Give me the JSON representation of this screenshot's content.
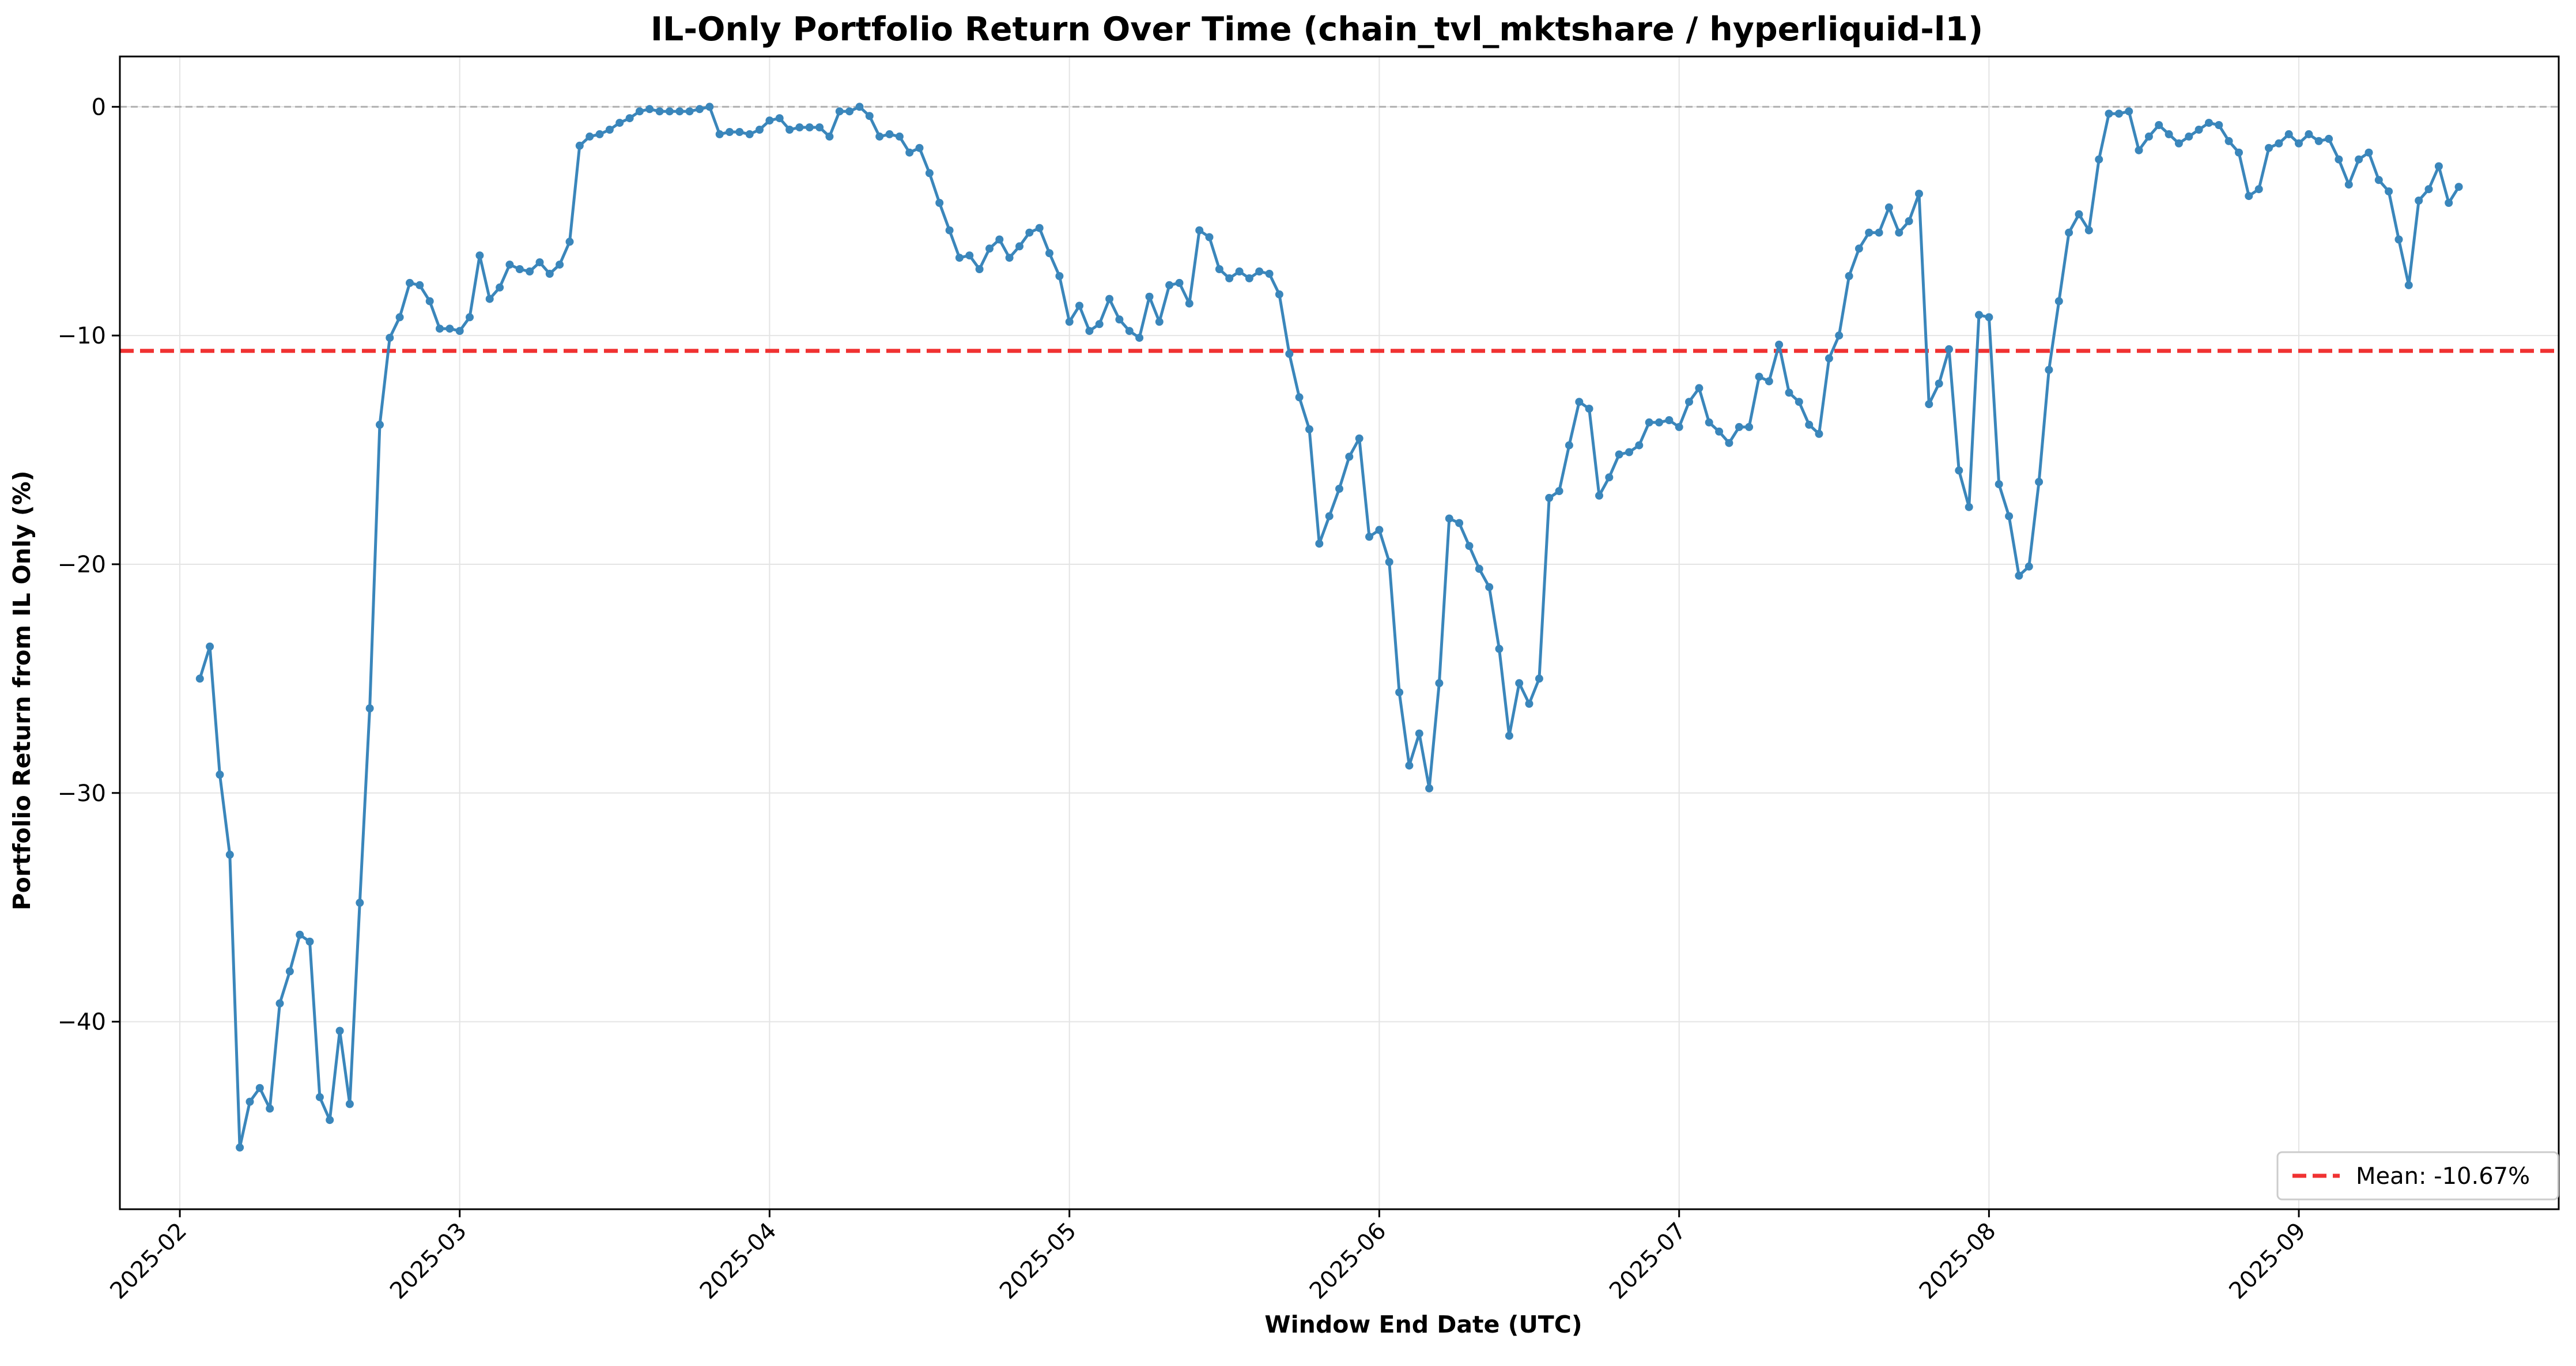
{
  "chart_data": {
    "type": "line",
    "title": "IL-Only Portfolio Return Over Time (chain_tvl_mktshare / hyperliquid-l1)",
    "xlabel": "Window End Date (UTC)",
    "ylabel": "Portfolio Return from IL Only (%)",
    "xlim": [
      "2025-01-26",
      "2025-09-27"
    ],
    "ylim": [
      -48.2,
      2.2
    ],
    "x_ticks": [
      "2025-02",
      "2025-03",
      "2025-04",
      "2025-05",
      "2025-06",
      "2025-07",
      "2025-08",
      "2025-09"
    ],
    "y_ticks": [
      0,
      -10,
      -20,
      -30,
      -40
    ],
    "y_tick_labels": [
      "0",
      "−10",
      "−20",
      "−30",
      "−40"
    ],
    "grid": true,
    "legend_position": "lower-right",
    "colors": {
      "line": "#3a86bb",
      "mean": "#f03232",
      "zero_line": "#b0b0b0",
      "grid": "#e4e4e4"
    },
    "mean_line": {
      "value": -10.67,
      "label": "Mean: -10.67%"
    },
    "zero_line": 0,
    "series": [
      {
        "start_date": "2025-02-03",
        "step_days": 1,
        "values": [
          -25.0,
          -23.6,
          -29.2,
          -32.7,
          -45.5,
          -43.5,
          -42.9,
          -43.8,
          -39.2,
          -37.8,
          -36.2,
          -36.5,
          -43.3,
          -44.3,
          -40.4,
          -43.6,
          -34.8,
          -26.3,
          -13.9,
          -10.1,
          -9.2,
          -7.7,
          -7.8,
          -8.5,
          -9.7,
          -9.7,
          -9.8,
          -9.2,
          -6.5,
          -8.4,
          -7.9,
          -6.9,
          -7.1,
          -7.2,
          -6.8,
          -7.3,
          -6.9,
          -5.9,
          -1.7,
          -1.3,
          -1.2,
          -1.0,
          -0.7,
          -0.5,
          -0.2,
          -0.1,
          -0.2,
          -0.2,
          -0.2,
          -0.2,
          -0.1,
          0.0,
          -1.2,
          -1.1,
          -1.1,
          -1.2,
          -1.0,
          -0.6,
          -0.5,
          -1.0,
          -0.9,
          -0.9,
          -0.9,
          -1.3,
          -0.2,
          -0.2,
          0.0,
          -0.4,
          -1.3,
          -1.2,
          -1.3,
          -2.0,
          -1.8,
          -2.9,
          -4.2,
          -5.4,
          -6.6,
          -6.5,
          -7.1,
          -6.2,
          -5.8,
          -6.6,
          -6.1,
          -5.5,
          -5.3,
          -6.4,
          -7.4,
          -9.4,
          -8.7,
          -9.8,
          -9.5,
          -8.4,
          -9.3,
          -9.8,
          -10.1,
          -8.3,
          -9.4,
          -7.8,
          -7.7,
          -8.6,
          -5.4,
          -5.7,
          -7.1,
          -7.5,
          -7.2,
          -7.5,
          -7.2,
          -7.3,
          -8.2,
          -10.8,
          -12.7,
          -14.1,
          -19.1,
          -17.9,
          -16.7,
          -15.3,
          -14.5,
          -18.8,
          -18.5,
          -19.9,
          -25.6,
          -28.8,
          -27.4,
          -29.8,
          -25.2,
          -18.0,
          -18.2,
          -19.2,
          -20.2,
          -21.0,
          -23.7,
          -27.5,
          -25.2,
          -26.1,
          -25.0,
          -17.1,
          -16.8,
          -14.8,
          -12.9,
          -13.2,
          -17.0,
          -16.2,
          -15.2,
          -15.1,
          -14.8,
          -13.8,
          -13.8,
          -13.7,
          -14.0,
          -12.9,
          -12.3,
          -13.8,
          -14.2,
          -14.7,
          -14.0,
          -14.0,
          -11.8,
          -12.0,
          -10.4,
          -12.5,
          -12.9,
          -13.9,
          -14.3,
          -11.0,
          -10.0,
          -7.4,
          -6.2,
          -5.5,
          -5.5,
          -4.4,
          -5.5,
          -5.0,
          -3.8,
          -13.0,
          -12.1,
          -10.6,
          -15.9,
          -17.5,
          -9.1,
          -9.2,
          -16.5,
          -17.9,
          -20.5,
          -20.1,
          -16.4,
          -11.5,
          -8.5,
          -5.5,
          -4.7,
          -5.4,
          -2.3,
          -0.3,
          -0.3,
          -0.2,
          -1.9,
          -1.3,
          -0.8,
          -1.2,
          -1.6,
          -1.3,
          -1.0,
          -0.7,
          -0.8,
          -1.5,
          -2.0,
          -3.9,
          -3.6,
          -1.8,
          -1.6,
          -1.2,
          -1.6,
          -1.2,
          -1.5,
          -1.4,
          -2.3,
          -3.4,
          -2.3,
          -2.0,
          -3.2,
          -3.7,
          -5.8,
          -7.8,
          -4.1,
          -3.6,
          -2.6,
          -4.2,
          -3.5
        ]
      }
    ]
  }
}
